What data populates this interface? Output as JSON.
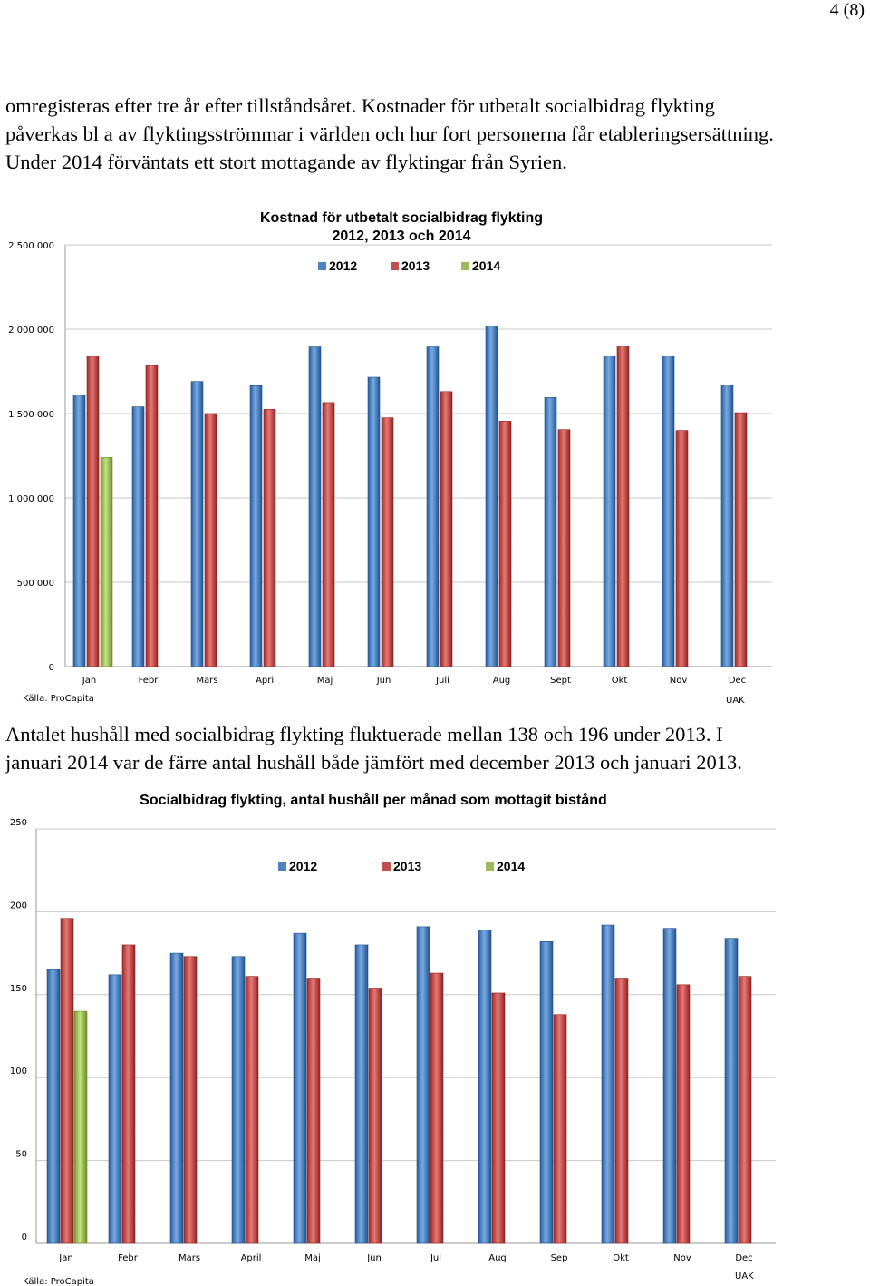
{
  "page_number": "4 (8)",
  "paragraph1": [
    "omregisteras efter tre år efter tillståndsåret. Kostnader för utbetalt socialbidrag flykting",
    "påverkas bl a av flyktingsströmmar i världen och hur fort personerna får etableringsersättning.",
    "Under 2014 förväntats ett stort mottagande av flyktingar från Syrien."
  ],
  "paragraph2": [
    "Antalet hushåll med socialbidrag flykting fluktuerade mellan 138 och 196 under 2013. I",
    "januari 2014 var de färre antal hushåll både jämfört med december 2013 och januari 2013."
  ],
  "colors": {
    "2012": "#4f81bd",
    "2013": "#c0504d",
    "2014": "#9bbb59"
  },
  "chart_data": [
    {
      "type": "bar",
      "title_lines": [
        "Kostnad för utbetalt socialbidrag flykting",
        "2012, 2013 och 2014"
      ],
      "categories": [
        "Jan",
        "Febr",
        "Mars",
        "April",
        "Maj",
        "Jun",
        "Juli",
        "Aug",
        "Sept",
        "Okt",
        "Nov",
        "Dec"
      ],
      "series": [
        {
          "name": "2012",
          "values": [
            1610000,
            1540000,
            1690000,
            1665000,
            1895000,
            1715000,
            1895000,
            2020000,
            1595000,
            1840000,
            1840000,
            1670000
          ]
        },
        {
          "name": "2013",
          "values": [
            1840000,
            1785000,
            1500000,
            1525000,
            1565000,
            1475000,
            1630000,
            1455000,
            1405000,
            1900000,
            1400000,
            1505000
          ]
        },
        {
          "name": "2014",
          "values": [
            1240000,
            null,
            null,
            null,
            null,
            null,
            null,
            null,
            null,
            null,
            null,
            null
          ]
        }
      ],
      "yticks": [
        "0",
        "500 000",
        "1 000 000",
        "1 500 000",
        "2 000 000",
        "2 500 000"
      ],
      "ylim": [
        0,
        2500000
      ],
      "grid": true,
      "legend_position": "top",
      "source_note": "Källa: ProCapita",
      "corner_note": "UAK"
    },
    {
      "type": "bar",
      "title_lines": [
        "Socialbidrag flykting, antal hushåll per månad som mottagit bistånd"
      ],
      "categories": [
        "Jan",
        "Febr",
        "Mars",
        "April",
        "Maj",
        "Jun",
        "Jul",
        "Aug",
        "Sep",
        "Okt",
        "Nov",
        "Dec"
      ],
      "series": [
        {
          "name": "2012",
          "values": [
            165,
            162,
            175,
            173,
            187,
            180,
            191,
            189,
            182,
            192,
            190,
            184
          ]
        },
        {
          "name": "2013",
          "values": [
            196,
            180,
            173,
            161,
            160,
            154,
            163,
            151,
            138,
            160,
            156,
            161
          ]
        },
        {
          "name": "2014",
          "values": [
            140,
            null,
            null,
            null,
            null,
            null,
            null,
            null,
            null,
            null,
            null,
            null
          ]
        }
      ],
      "yticks": [
        "0",
        "50",
        "100",
        "150",
        "200",
        "250"
      ],
      "ylim": [
        0,
        250
      ],
      "grid": true,
      "legend_position": "top",
      "source_note": "Källa: ProCapita",
      "corner_note": "UAK"
    }
  ]
}
